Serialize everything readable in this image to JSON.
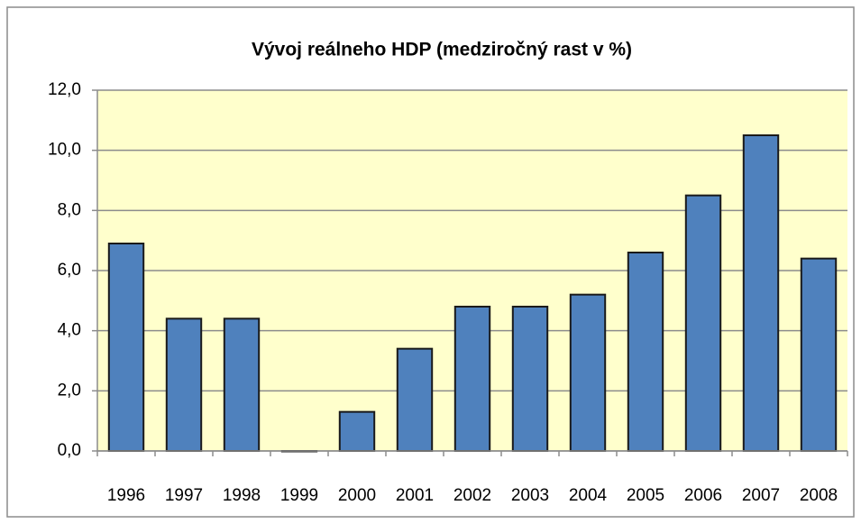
{
  "chart_data": {
    "type": "bar",
    "title": "Vývoj reálneho HDP  (medziročný rast v %)",
    "categories": [
      "1996",
      "1997",
      "1998",
      "1999",
      "2000",
      "2001",
      "2002",
      "2003",
      "2004",
      "2005",
      "2006",
      "2007",
      "2008"
    ],
    "values": [
      6.9,
      4.4,
      4.4,
      0.0,
      1.3,
      3.4,
      4.8,
      4.8,
      5.2,
      6.6,
      8.5,
      10.5,
      6.4
    ],
    "color": "#4f81bd",
    "ylim": [
      0,
      12
    ],
    "yticks": [
      {
        "value": 0,
        "label": "0,0"
      },
      {
        "value": 2,
        "label": "2,0"
      },
      {
        "value": 4,
        "label": "4,0"
      },
      {
        "value": 6,
        "label": "6,0"
      },
      {
        "value": 8,
        "label": "8,0"
      },
      {
        "value": 10,
        "label": "10,0"
      },
      {
        "value": 12,
        "label": "12,0"
      }
    ],
    "grid": true
  }
}
